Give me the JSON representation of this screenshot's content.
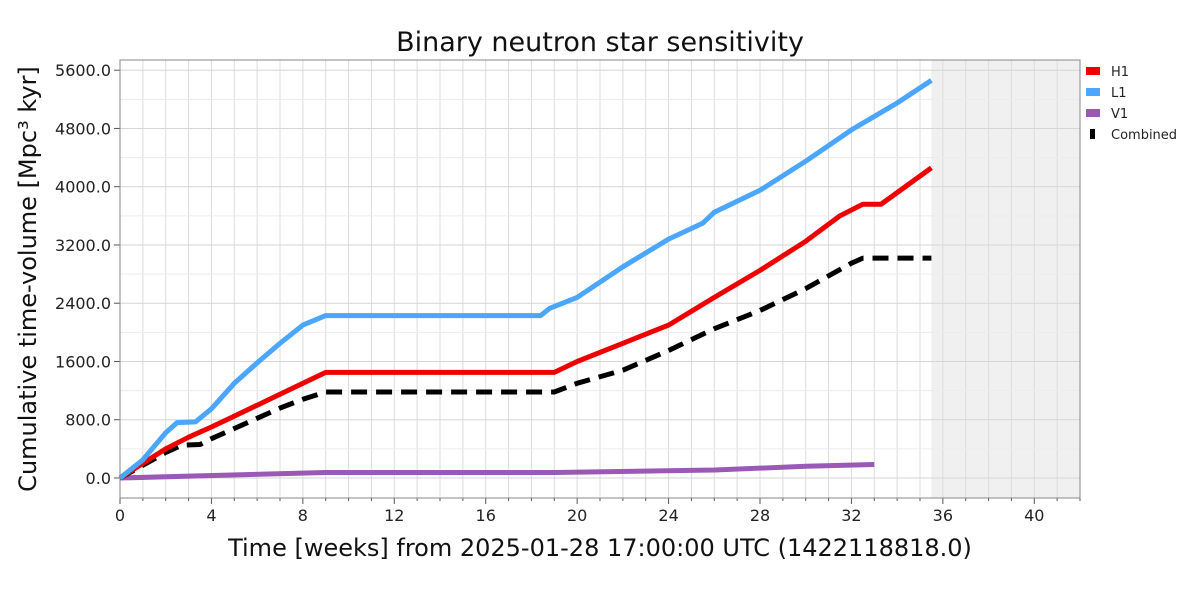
{
  "chart_data": {
    "type": "line",
    "title": "Binary neutron star sensitivity",
    "xlabel": "Time [weeks] from 2025-01-28 17:00:00 UTC (1422118818.0)",
    "ylabel": "Cumulative time-volume [Mpc³ kyr]",
    "xlim": [
      0,
      42
    ],
    "ylim": [
      -275,
      5740
    ],
    "xticks": [
      0,
      4,
      8,
      12,
      16,
      20,
      24,
      28,
      32,
      36,
      40
    ],
    "xtick_labels": [
      "0",
      "4",
      "8",
      "12",
      "16",
      "20",
      "24",
      "28",
      "32",
      "36",
      "40"
    ],
    "yticks": [
      0,
      800,
      1600,
      2400,
      3200,
      4000,
      4800,
      5600
    ],
    "ytick_labels": [
      "0.0",
      "800.0",
      "1600.0",
      "2400.0",
      "3200.0",
      "4000.0",
      "4800.0",
      "5600.0"
    ],
    "grid": true,
    "shaded_region_x": [
      35.5,
      42
    ],
    "legend_position": "outside-top-right",
    "series": [
      {
        "name": "H1",
        "color": "#ee0000",
        "style": "solid",
        "x": [
          0,
          2,
          3,
          4,
          5,
          6,
          7,
          8,
          9,
          19,
          20,
          22,
          24,
          26,
          28,
          30,
          31.5,
          32.5,
          33.3,
          35.5
        ],
        "y": [
          0,
          400,
          560,
          700,
          850,
          1000,
          1150,
          1300,
          1450,
          1450,
          1600,
          1850,
          2100,
          2480,
          2850,
          3250,
          3600,
          3760,
          3760,
          4260
        ]
      },
      {
        "name": "L1",
        "color": "#4ba6ff",
        "style": "solid",
        "x": [
          0,
          1,
          2,
          2.5,
          3.3,
          4,
          5,
          6,
          7,
          8,
          9,
          18.4,
          18.8,
          20,
          22,
          24,
          25.5,
          26,
          28,
          30,
          32,
          34,
          35.5
        ],
        "y": [
          0,
          250,
          620,
          760,
          770,
          950,
          1300,
          1580,
          1850,
          2100,
          2230,
          2230,
          2330,
          2480,
          2900,
          3280,
          3500,
          3650,
          3950,
          4350,
          4780,
          5150,
          5460
        ]
      },
      {
        "name": "V1",
        "color": "#9b59b6",
        "style": "solid",
        "x": [
          0,
          9,
          19,
          26,
          30,
          33
        ],
        "y": [
          0,
          75,
          75,
          110,
          160,
          185
        ]
      },
      {
        "name": "Combined",
        "color": "#000000",
        "style": "dashed",
        "x": [
          0,
          2,
          2.7,
          3.5,
          4,
          5,
          6,
          7,
          8,
          9,
          19,
          20,
          22,
          24,
          26,
          28,
          30,
          32,
          32.5,
          35.5
        ],
        "y": [
          0,
          350,
          450,
          460,
          540,
          680,
          820,
          960,
          1080,
          1180,
          1180,
          1300,
          1480,
          1750,
          2050,
          2300,
          2600,
          2950,
          3020,
          3020
        ]
      }
    ]
  }
}
